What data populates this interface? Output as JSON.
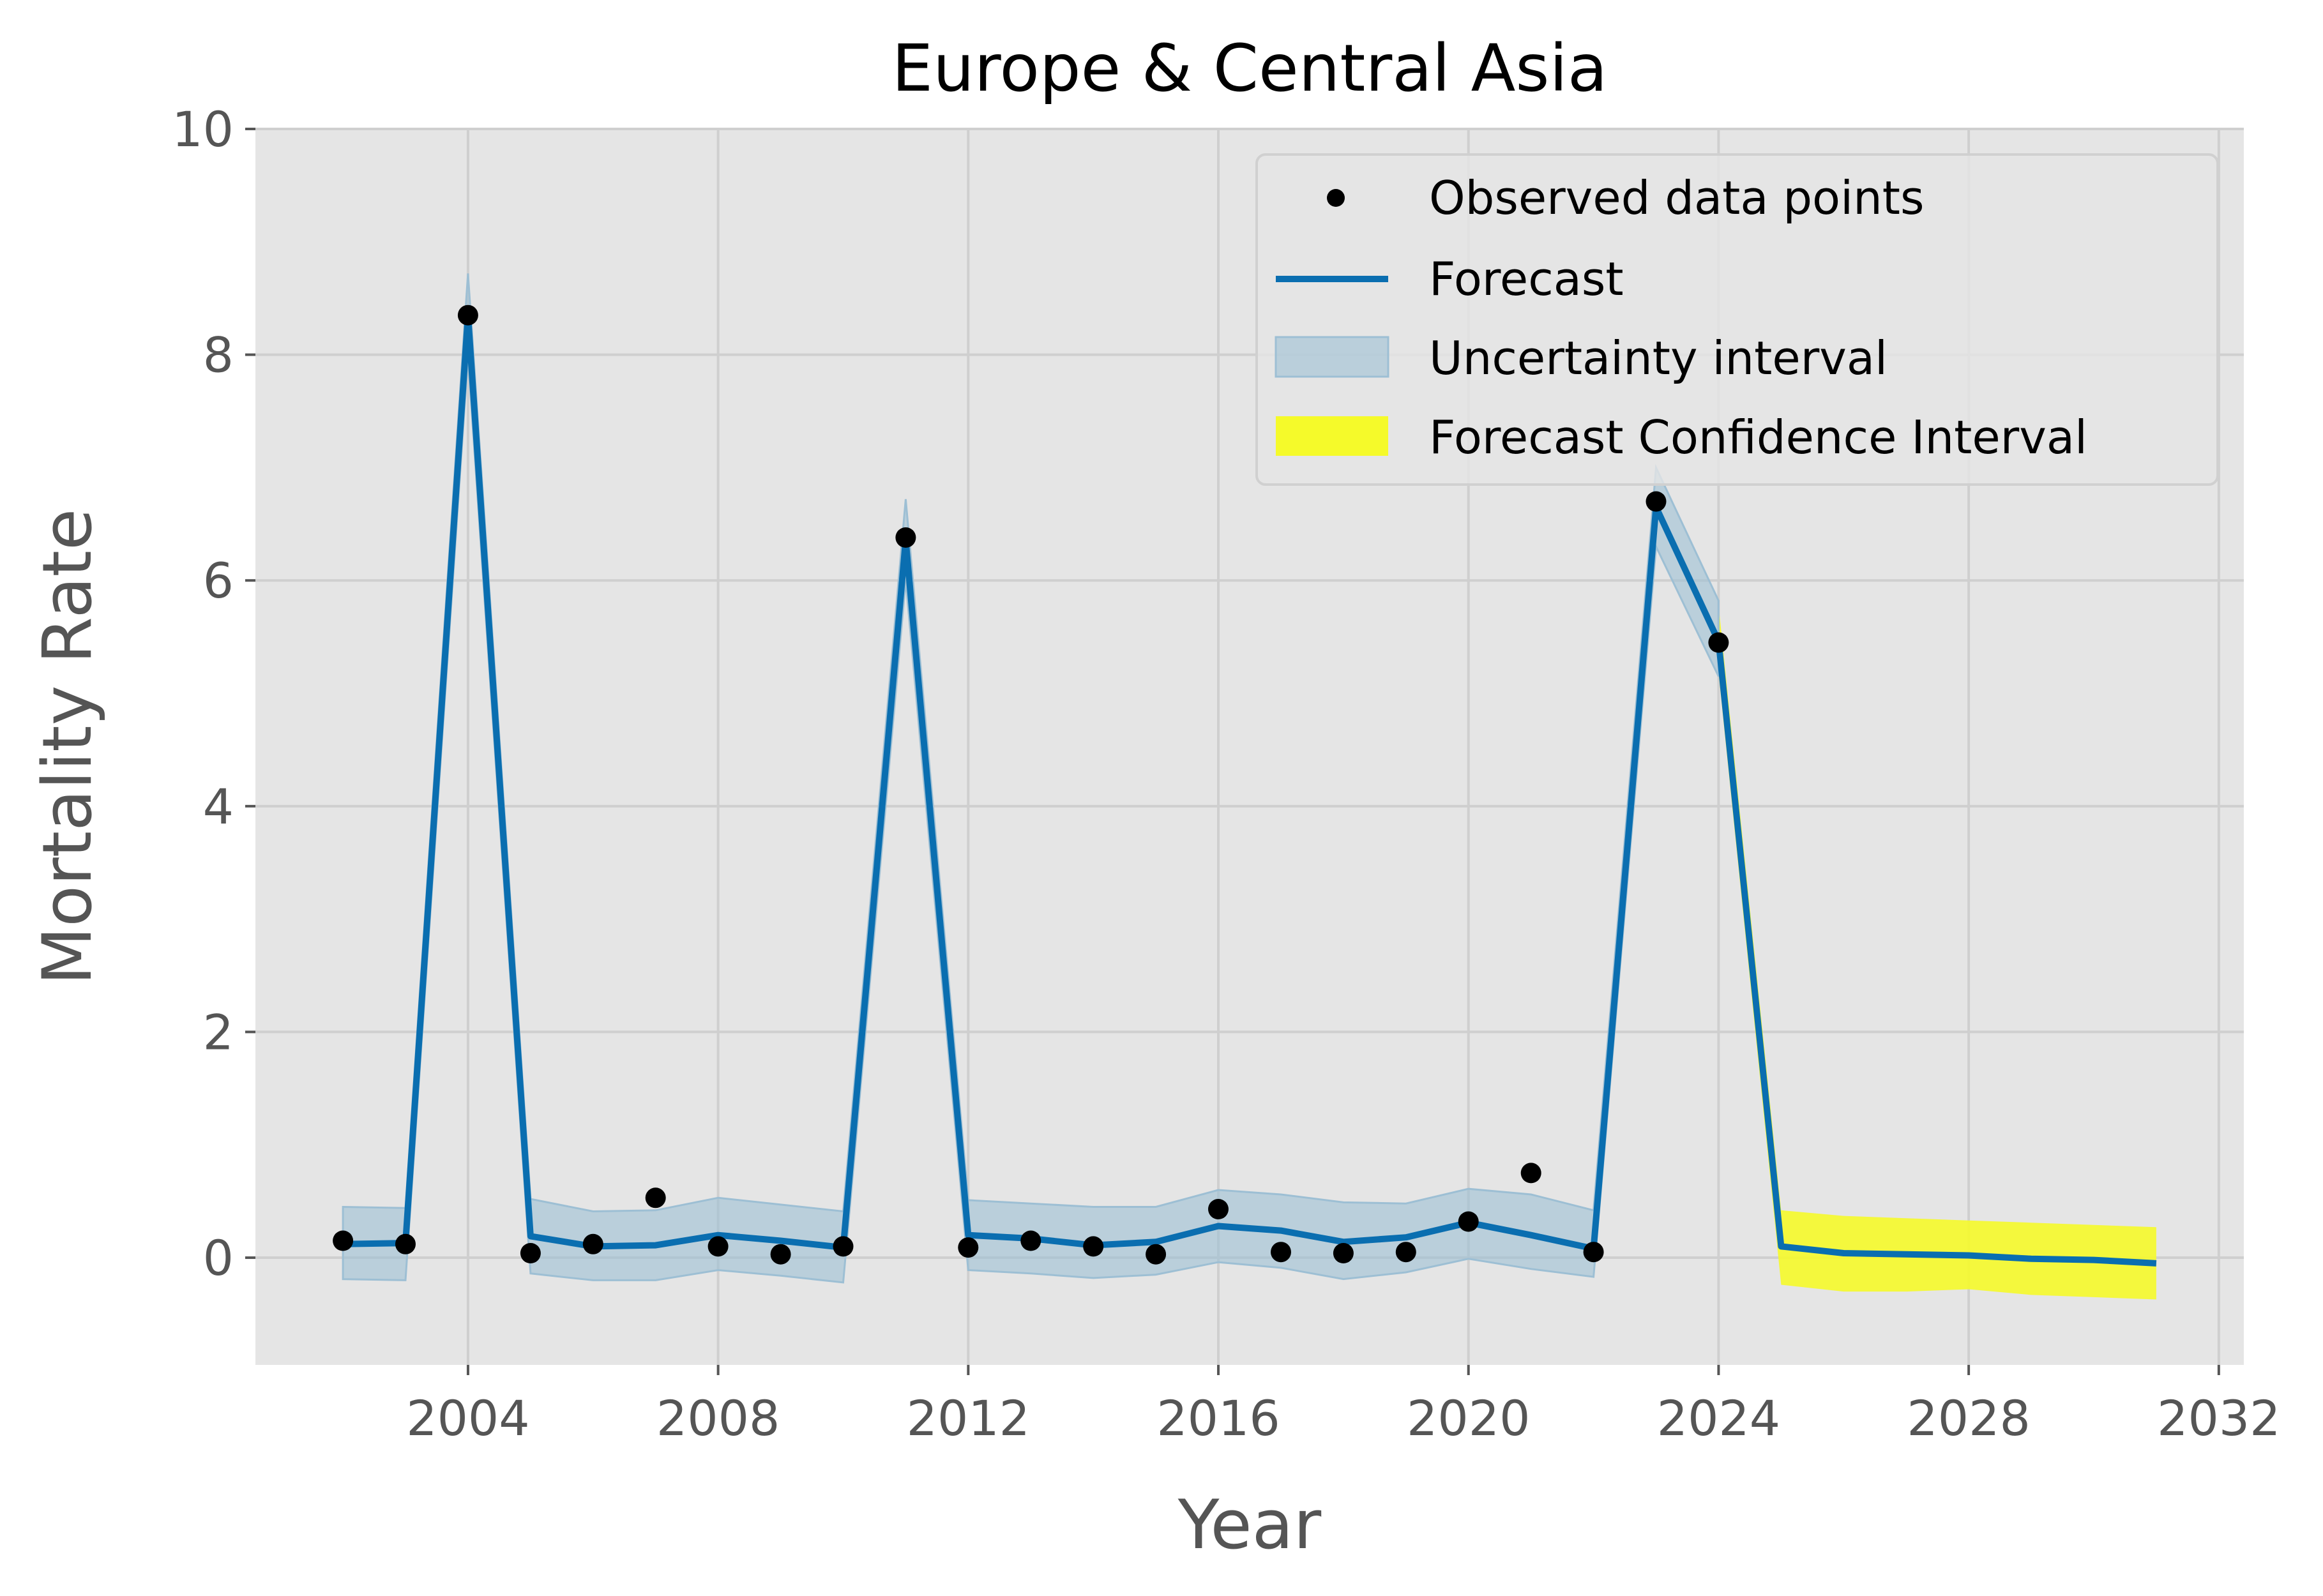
{
  "colors": {
    "plot_background": "#e5e5e5",
    "grid": "#cfcfcf",
    "forecast_line": "#0a6eb0",
    "uncertainty_fill": "#9dbfd4",
    "forecast_ci_fill": "#f5fa2a",
    "observed_point": "#000000"
  },
  "chart_data": {
    "type": "line",
    "title": "Europe & Central Asia",
    "xlabel": "Year",
    "ylabel": "Mortality Rate",
    "xlim": [
      2000.6,
      2032.4
    ],
    "ylim": [
      -0.95,
      10
    ],
    "x_ticks": [
      2004,
      2008,
      2012,
      2016,
      2020,
      2024,
      2028,
      2032
    ],
    "y_ticks": [
      0,
      2,
      4,
      6,
      8,
      10
    ],
    "grid": true,
    "legend_position": "top-right",
    "legend": [
      {
        "label": "Observed data points",
        "kind": "point"
      },
      {
        "label": "Forecast",
        "kind": "line"
      },
      {
        "label": "Uncertainty interval",
        "kind": "band"
      },
      {
        "label": "Forecast Confidence Interval",
        "kind": "ci-band"
      }
    ],
    "observed": {
      "x": [
        2002,
        2003,
        2004,
        2005,
        2006,
        2007,
        2008,
        2009,
        2010,
        2011,
        2012,
        2013,
        2014,
        2015,
        2016,
        2017,
        2018,
        2019,
        2020,
        2021,
        2022,
        2023,
        2024
      ],
      "y": [
        0.15,
        0.12,
        8.35,
        0.04,
        0.12,
        0.53,
        0.1,
        0.03,
        0.1,
        6.38,
        0.09,
        0.15,
        0.1,
        0.03,
        0.43,
        0.05,
        0.04,
        0.05,
        0.32,
        0.75,
        0.05,
        6.7,
        5.45
      ]
    },
    "forecast": {
      "x": [
        2002,
        2003,
        2004,
        2005,
        2006,
        2007,
        2008,
        2009,
        2010,
        2011,
        2012,
        2013,
        2014,
        2015,
        2016,
        2017,
        2018,
        2019,
        2020,
        2021,
        2022,
        2023,
        2024,
        2025,
        2026,
        2027,
        2028,
        2029,
        2030,
        2031
      ],
      "y": [
        0.12,
        0.13,
        8.35,
        0.19,
        0.1,
        0.11,
        0.2,
        0.15,
        0.09,
        6.36,
        0.2,
        0.17,
        0.11,
        0.14,
        0.28,
        0.24,
        0.14,
        0.18,
        0.31,
        0.2,
        0.08,
        6.65,
        5.46,
        0.1,
        0.04,
        0.03,
        0.02,
        -0.01,
        -0.02,
        -0.05
      ]
    },
    "uncertainty_interval": {
      "x": [
        2002,
        2003,
        2004,
        2005,
        2006,
        2007,
        2008,
        2009,
        2010,
        2011,
        2012,
        2013,
        2014,
        2015,
        2016,
        2017,
        2018,
        2019,
        2020,
        2021,
        2022,
        2023,
        2024
      ],
      "lower": [
        -0.19,
        -0.2,
        7.98,
        -0.14,
        -0.2,
        -0.2,
        -0.11,
        -0.16,
        -0.22,
        6.0,
        -0.11,
        -0.14,
        -0.18,
        -0.15,
        -0.04,
        -0.09,
        -0.19,
        -0.13,
        -0.01,
        -0.1,
        -0.17,
        6.3,
        5.15
      ],
      "upper": [
        0.45,
        0.44,
        8.72,
        0.52,
        0.41,
        0.42,
        0.53,
        0.47,
        0.41,
        6.72,
        0.51,
        0.48,
        0.45,
        0.45,
        0.6,
        0.56,
        0.49,
        0.48,
        0.61,
        0.56,
        0.42,
        7.0,
        5.82
      ]
    },
    "forecast_confidence_interval": {
      "x": [
        2024,
        2025,
        2026,
        2027,
        2028,
        2029,
        2030,
        2031
      ],
      "lower": [
        5.18,
        -0.24,
        -0.3,
        -0.3,
        -0.28,
        -0.33,
        -0.35,
        -0.37
      ],
      "upper": [
        5.78,
        0.42,
        0.37,
        0.35,
        0.33,
        0.31,
        0.29,
        0.27
      ]
    }
  }
}
